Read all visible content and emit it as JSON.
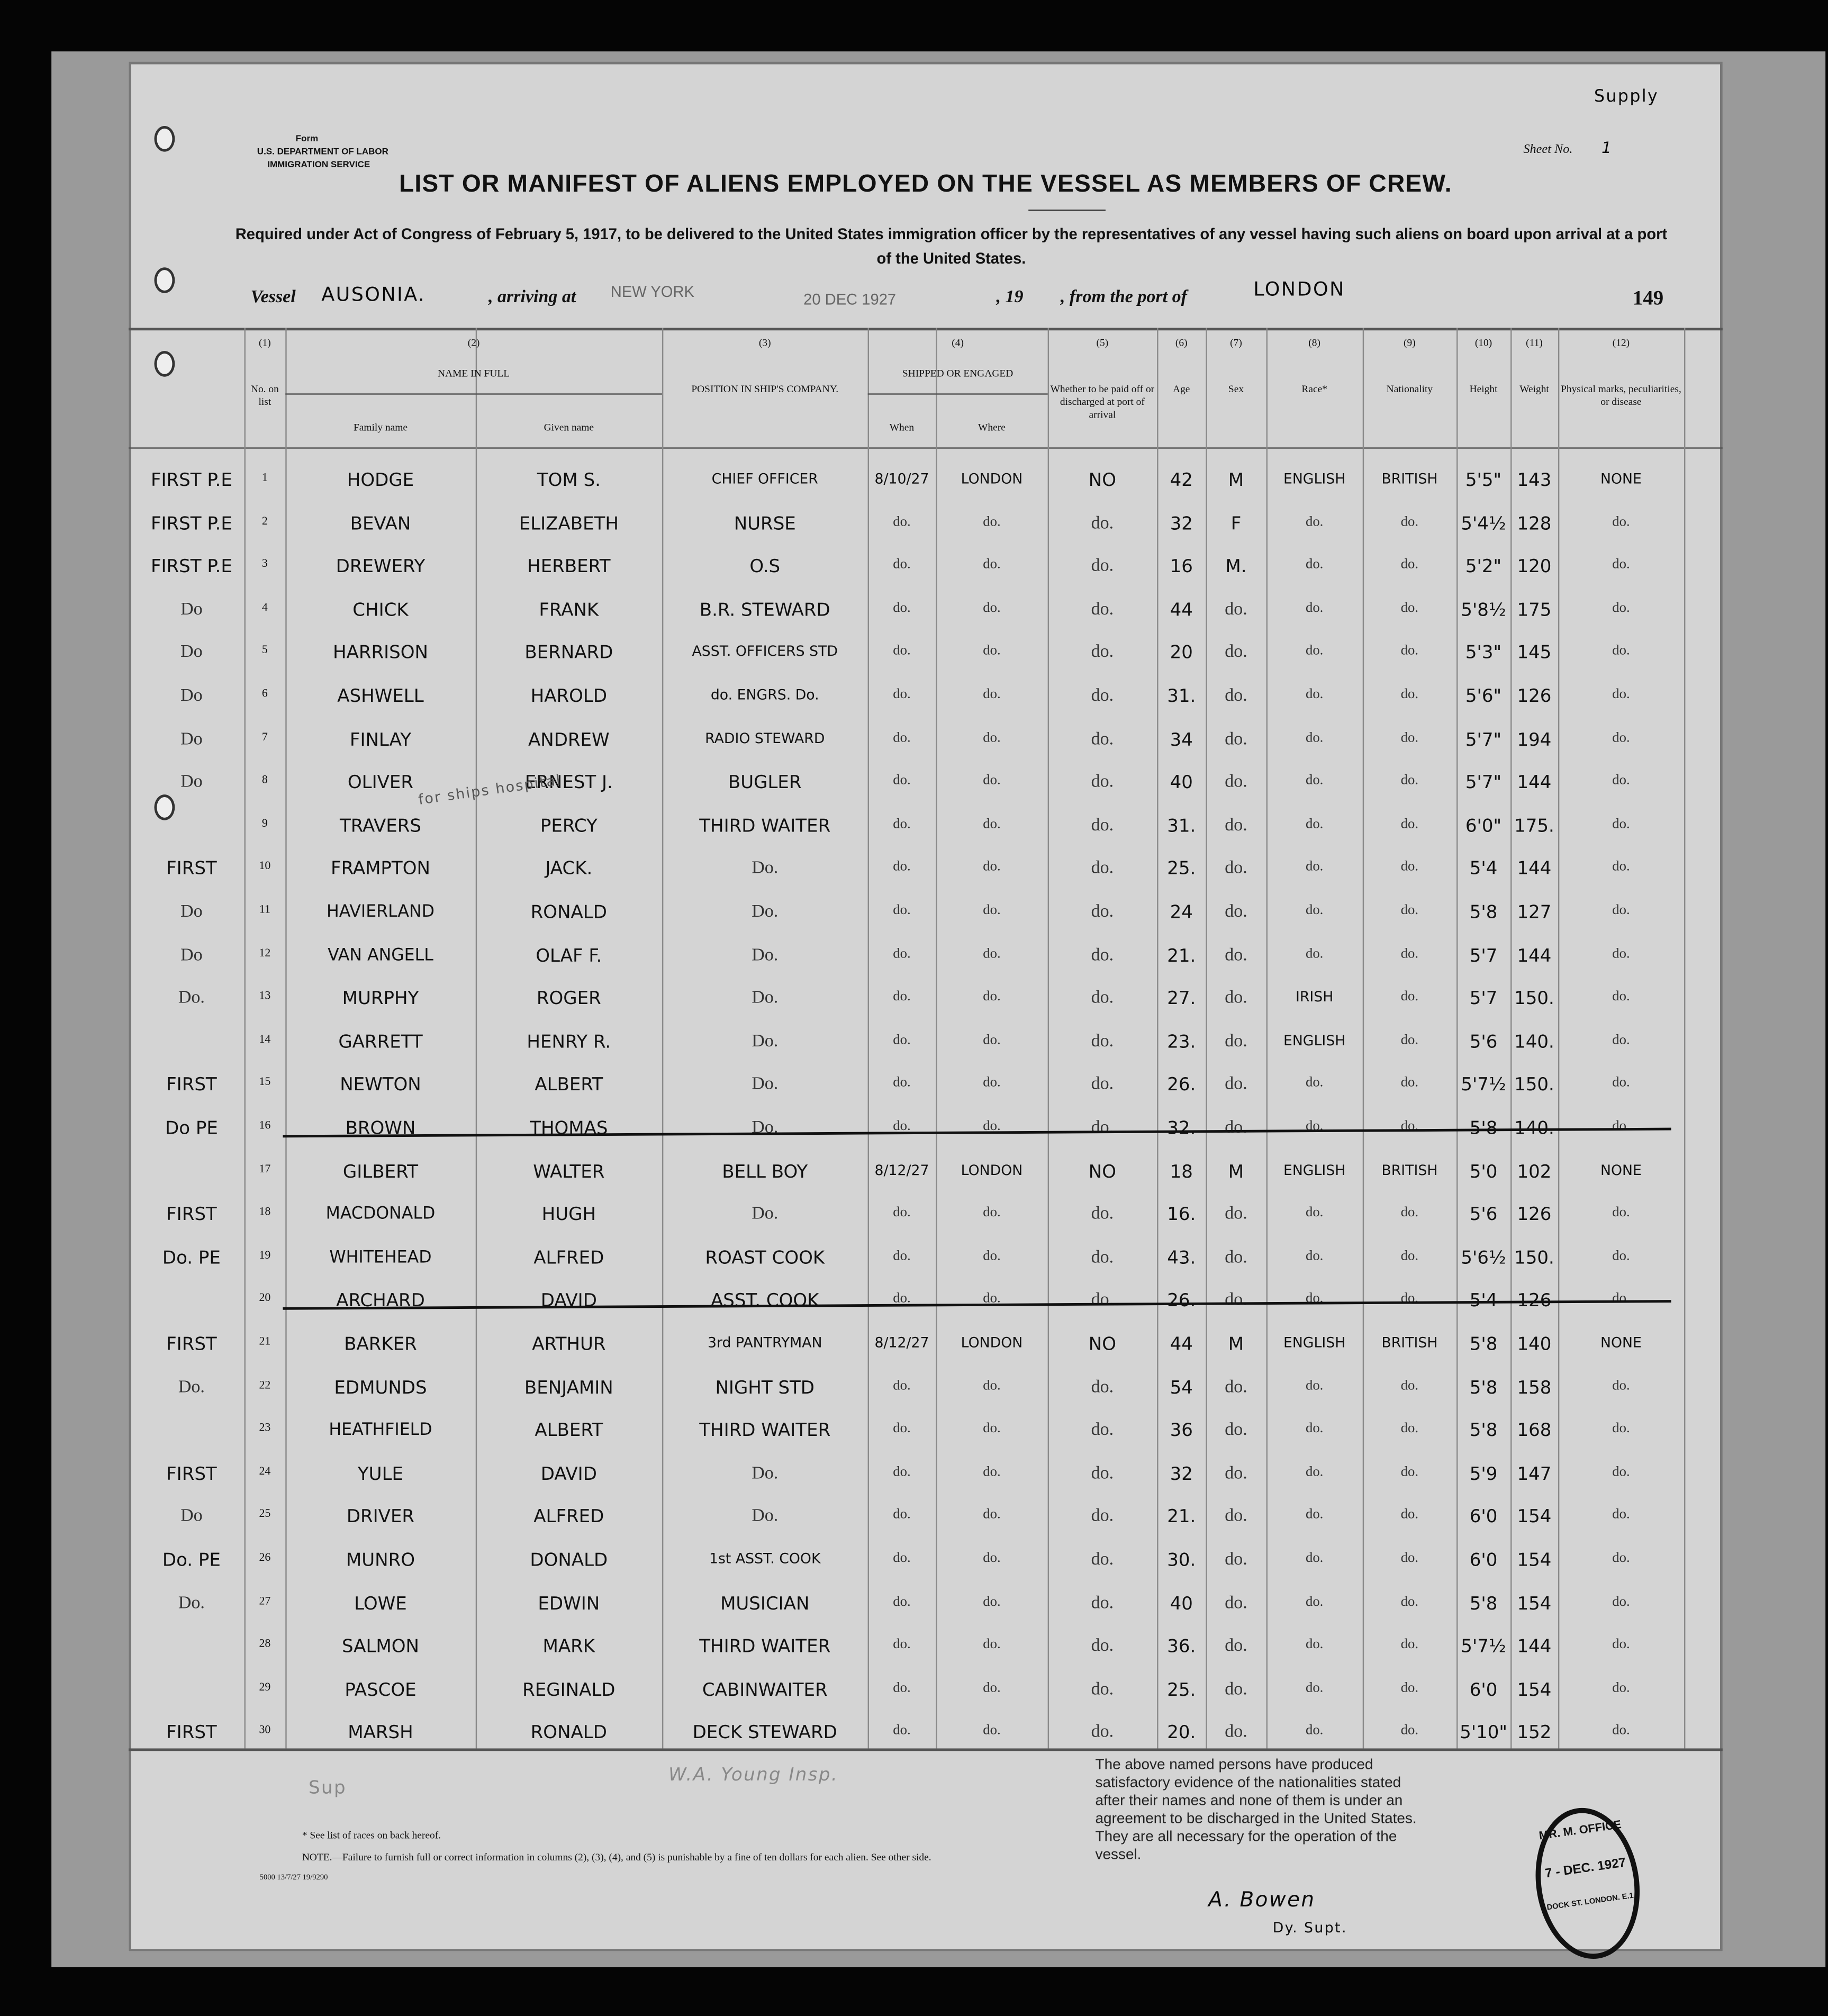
{
  "form": {
    "form_label": "Form",
    "department": "U.S. DEPARTMENT OF LABOR",
    "service": "IMMIGRATION SERVICE",
    "sheet_label": "Sheet No.",
    "sheet_no": "1",
    "corner_note": "Supply"
  },
  "title": "LIST OR MANIFEST OF ALIENS EMPLOYED ON THE VESSEL AS MEMBERS OF CREW.",
  "subtitle": "Required under Act of Congress of February 5, 1917, to be delivered to the United States immigration officer by the representatives of any vessel having such aliens on board upon arrival at a port of the United States.",
  "vessel_line": {
    "vessel_label": "Vessel",
    "vessel": "AUSONIA.",
    "arriving_label": ", arriving at",
    "arriving": "NEW YORK",
    "date": "20 DEC 1927",
    "year_label": ", 19",
    "from_label": ", from the port of",
    "from": "LONDON",
    "number": "149"
  },
  "columns": {
    "c1": {
      "num": "(1)",
      "label": "No. on list"
    },
    "c2": {
      "num": "(2)",
      "label": "NAME IN FULL",
      "family": "Family name",
      "given": "Given name"
    },
    "c3": {
      "num": "(3)",
      "label": "POSITION IN SHIP'S COMPANY."
    },
    "c4": {
      "num": "(4)",
      "label": "SHIPPED OR ENGAGED",
      "when": "When",
      "where": "Where"
    },
    "c5": {
      "num": "(5)",
      "label": "Whether to be paid off or discharged at port of arrival"
    },
    "c6": {
      "num": "(6)",
      "label": "Age"
    },
    "c7": {
      "num": "(7)",
      "label": "Sex"
    },
    "c8": {
      "num": "(8)",
      "label": "Race*"
    },
    "c9": {
      "num": "(9)",
      "label": "Nationality"
    },
    "c10": {
      "num": "(10)",
      "label": "Height"
    },
    "c11": {
      "num": "(11)",
      "label": "Weight"
    },
    "c12": {
      "num": "(12)",
      "label": "Physical marks, peculiarities, or disease"
    }
  },
  "rows": [
    {
      "margin": "FIRST P.E",
      "no": "1",
      "family": "HODGE",
      "given": "TOM S.",
      "position": "CHIEF OFFICER",
      "when": "8/10/27",
      "where": "LONDON",
      "paid": "NO",
      "age": "42",
      "sex": "M",
      "race": "ENGLISH",
      "nationality": "BRITISH",
      "height": "5'5\"",
      "weight": "143",
      "marks": "NONE",
      "struck": false
    },
    {
      "margin": "FIRST P.E",
      "no": "2",
      "family": "BEVAN",
      "given": "ELIZABETH",
      "position": "NURSE",
      "when": "do.",
      "where": "do.",
      "paid": "do.",
      "age": "32",
      "sex": "F",
      "race": "do.",
      "nationality": "do.",
      "height": "5'4½",
      "weight": "128",
      "marks": "do.",
      "struck": false
    },
    {
      "margin": "FIRST P.E",
      "no": "3",
      "family": "DREWERY",
      "given": "HERBERT",
      "position": "O.S",
      "when": "do.",
      "where": "do.",
      "paid": "do.",
      "age": "16",
      "sex": "M.",
      "race": "do.",
      "nationality": "do.",
      "height": "5'2\"",
      "weight": "120",
      "marks": "do.",
      "struck": false
    },
    {
      "margin": "Do",
      "no": "4",
      "family": "CHICK",
      "given": "FRANK",
      "position": "B.R. STEWARD",
      "when": "do.",
      "where": "do.",
      "paid": "do.",
      "age": "44",
      "sex": "do.",
      "race": "do.",
      "nationality": "do.",
      "height": "5'8½",
      "weight": "175",
      "marks": "do.",
      "struck": false
    },
    {
      "margin": "Do",
      "no": "5",
      "family": "HARRISON",
      "given": "BERNARD",
      "position": "ASST. OFFICERS STD",
      "when": "do.",
      "where": "do.",
      "paid": "do.",
      "age": "20",
      "sex": "do.",
      "race": "do.",
      "nationality": "do.",
      "height": "5'3\"",
      "weight": "145",
      "marks": "do.",
      "struck": false
    },
    {
      "margin": "Do",
      "no": "6",
      "family": "ASHWELL",
      "given": "HAROLD",
      "position": "do. ENGRS. Do.",
      "when": "do.",
      "where": "do.",
      "paid": "do.",
      "age": "31.",
      "sex": "do.",
      "race": "do.",
      "nationality": "do.",
      "height": "5'6\"",
      "weight": "126",
      "marks": "do.",
      "struck": false
    },
    {
      "margin": "Do",
      "no": "7",
      "family": "FINLAY",
      "given": "ANDREW",
      "position": "RADIO STEWARD",
      "when": "do.",
      "where": "do.",
      "paid": "do.",
      "age": "34",
      "sex": "do.",
      "race": "do.",
      "nationality": "do.",
      "height": "5'7\"",
      "weight": "194",
      "marks": "do.",
      "struck": false
    },
    {
      "margin": "Do",
      "no": "8",
      "family": "OLIVER",
      "given": "ERNEST J.",
      "position": "BUGLER",
      "when": "do.",
      "where": "do.",
      "paid": "do.",
      "age": "40",
      "sex": "do.",
      "race": "do.",
      "nationality": "do.",
      "height": "5'7\"",
      "weight": "144",
      "marks": "do.",
      "struck": false
    },
    {
      "margin": "",
      "no": "9",
      "family": "TRAVERS",
      "given": "PERCY",
      "position": "THIRD WAITER",
      "when": "do.",
      "where": "do.",
      "paid": "do.",
      "age": "31.",
      "sex": "do.",
      "race": "do.",
      "nationality": "do.",
      "height": "6'0\"",
      "weight": "175.",
      "marks": "do.",
      "struck": false
    },
    {
      "margin": "FIRST",
      "no": "10",
      "family": "FRAMPTON",
      "given": "JACK.",
      "position": "Do.",
      "when": "do.",
      "where": "do.",
      "paid": "do.",
      "age": "25.",
      "sex": "do.",
      "race": "do.",
      "nationality": "do.",
      "height": "5'4",
      "weight": "144",
      "marks": "do.",
      "struck": false
    },
    {
      "margin": "Do",
      "no": "11",
      "family": "HAVIERLAND",
      "given": "RONALD",
      "position": "Do.",
      "when": "do.",
      "where": "do.",
      "paid": "do.",
      "age": "24",
      "sex": "do.",
      "race": "do.",
      "nationality": "do.",
      "height": "5'8",
      "weight": "127",
      "marks": "do.",
      "struck": false
    },
    {
      "margin": "Do",
      "no": "12",
      "family": "VAN ANGELL",
      "given": "OLAF F.",
      "position": "Do.",
      "when": "do.",
      "where": "do.",
      "paid": "do.",
      "age": "21.",
      "sex": "do.",
      "race": "do.",
      "nationality": "do.",
      "height": "5'7",
      "weight": "144",
      "marks": "do.",
      "struck": false
    },
    {
      "margin": "Do.",
      "no": "13",
      "family": "MURPHY",
      "given": "ROGER",
      "position": "Do.",
      "when": "do.",
      "where": "do.",
      "paid": "do.",
      "age": "27.",
      "sex": "do.",
      "race": "IRISH",
      "nationality": "do.",
      "height": "5'7",
      "weight": "150.",
      "marks": "do.",
      "struck": false
    },
    {
      "margin": "",
      "no": "14",
      "family": "GARRETT",
      "given": "HENRY R.",
      "position": "Do.",
      "when": "do.",
      "where": "do.",
      "paid": "do.",
      "age": "23.",
      "sex": "do.",
      "race": "ENGLISH",
      "nationality": "do.",
      "height": "5'6",
      "weight": "140.",
      "marks": "do.",
      "struck": false
    },
    {
      "margin": "FIRST",
      "no": "15",
      "family": "NEWTON",
      "given": "ALBERT",
      "position": "Do.",
      "when": "do.",
      "where": "do.",
      "paid": "do.",
      "age": "26.",
      "sex": "do.",
      "race": "do.",
      "nationality": "do.",
      "height": "5'7½",
      "weight": "150.",
      "marks": "do.",
      "struck": false
    },
    {
      "margin": "Do PE",
      "no": "16",
      "family": "BROWN",
      "given": "THOMAS",
      "position": "Do.",
      "when": "do.",
      "where": "do.",
      "paid": "do.",
      "age": "32.",
      "sex": "do.",
      "race": "do.",
      "nationality": "do.",
      "height": "5'8",
      "weight": "140.",
      "marks": "do.",
      "struck": true
    },
    {
      "margin": "",
      "no": "17",
      "family": "GILBERT",
      "given": "WALTER",
      "position": "BELL BOY",
      "when": "8/12/27",
      "where": "LONDON",
      "paid": "NO",
      "age": "18",
      "sex": "M",
      "race": "ENGLISH",
      "nationality": "BRITISH",
      "height": "5'0",
      "weight": "102",
      "marks": "NONE",
      "struck": false
    },
    {
      "margin": "FIRST",
      "no": "18",
      "family": "MACDONALD",
      "given": "HUGH",
      "position": "Do.",
      "when": "do.",
      "where": "do.",
      "paid": "do.",
      "age": "16.",
      "sex": "do.",
      "race": "do.",
      "nationality": "do.",
      "height": "5'6",
      "weight": "126",
      "marks": "do.",
      "struck": false
    },
    {
      "margin": "Do. PE",
      "no": "19",
      "family": "WHITEHEAD",
      "given": "ALFRED",
      "position": "ROAST COOK",
      "when": "do.",
      "where": "do.",
      "paid": "do.",
      "age": "43.",
      "sex": "do.",
      "race": "do.",
      "nationality": "do.",
      "height": "5'6½",
      "weight": "150.",
      "marks": "do.",
      "struck": false
    },
    {
      "margin": "",
      "no": "20",
      "family": "ARCHARD",
      "given": "DAVID",
      "position": "ASST. COOK",
      "when": "do.",
      "where": "do.",
      "paid": "do.",
      "age": "26.",
      "sex": "do.",
      "race": "do.",
      "nationality": "do.",
      "height": "5'4",
      "weight": "126",
      "marks": "do.",
      "struck": true
    },
    {
      "margin": "FIRST",
      "no": "21",
      "family": "BARKER",
      "given": "ARTHUR",
      "position": "3rd PANTRYMAN",
      "when": "8/12/27",
      "where": "LONDON",
      "paid": "NO",
      "age": "44",
      "sex": "M",
      "race": "ENGLISH",
      "nationality": "BRITISH",
      "height": "5'8",
      "weight": "140",
      "marks": "NONE",
      "struck": false
    },
    {
      "margin": "Do.",
      "no": "22",
      "family": "EDMUNDS",
      "given": "BENJAMIN",
      "position": "NIGHT STD",
      "when": "do.",
      "where": "do.",
      "paid": "do.",
      "age": "54",
      "sex": "do.",
      "race": "do.",
      "nationality": "do.",
      "height": "5'8",
      "weight": "158",
      "marks": "do.",
      "struck": false
    },
    {
      "margin": "",
      "no": "23",
      "family": "HEATHFIELD",
      "given": "ALBERT",
      "position": "THIRD WAITER",
      "when": "do.",
      "where": "do.",
      "paid": "do.",
      "age": "36",
      "sex": "do.",
      "race": "do.",
      "nationality": "do.",
      "height": "5'8",
      "weight": "168",
      "marks": "do.",
      "struck": false
    },
    {
      "margin": "FIRST",
      "no": "24",
      "family": "YULE",
      "given": "DAVID",
      "position": "Do.",
      "when": "do.",
      "where": "do.",
      "paid": "do.",
      "age": "32",
      "sex": "do.",
      "race": "do.",
      "nationality": "do.",
      "height": "5'9",
      "weight": "147",
      "marks": "do.",
      "struck": false
    },
    {
      "margin": "Do",
      "no": "25",
      "family": "DRIVER",
      "given": "ALFRED",
      "position": "Do.",
      "when": "do.",
      "where": "do.",
      "paid": "do.",
      "age": "21.",
      "sex": "do.",
      "race": "do.",
      "nationality": "do.",
      "height": "6'0",
      "weight": "154",
      "marks": "do.",
      "struck": false
    },
    {
      "margin": "Do. PE",
      "no": "26",
      "family": "MUNRO",
      "given": "DONALD",
      "position": "1st ASST. COOK",
      "when": "do.",
      "where": "do.",
      "paid": "do.",
      "age": "30.",
      "sex": "do.",
      "race": "do.",
      "nationality": "do.",
      "height": "6'0",
      "weight": "154",
      "marks": "do.",
      "struck": false
    },
    {
      "margin": "Do.",
      "no": "27",
      "family": "LOWE",
      "given": "EDWIN",
      "position": "MUSICIAN",
      "when": "do.",
      "where": "do.",
      "paid": "do.",
      "age": "40",
      "sex": "do.",
      "race": "do.",
      "nationality": "do.",
      "height": "5'8",
      "weight": "154",
      "marks": "do.",
      "struck": false
    },
    {
      "margin": "",
      "no": "28",
      "family": "SALMON",
      "given": "MARK",
      "position": "THIRD WAITER",
      "when": "do.",
      "where": "do.",
      "paid": "do.",
      "age": "36.",
      "sex": "do.",
      "race": "do.",
      "nationality": "do.",
      "height": "5'7½",
      "weight": "144",
      "marks": "do.",
      "struck": false
    },
    {
      "margin": "",
      "no": "29",
      "family": "PASCOE",
      "given": "REGINALD",
      "position": "CABINWAITER",
      "when": "do.",
      "where": "do.",
      "paid": "do.",
      "age": "25.",
      "sex": "do.",
      "race": "do.",
      "nationality": "do.",
      "height": "6'0",
      "weight": "154",
      "marks": "do.",
      "struck": false
    },
    {
      "margin": "FIRST",
      "no": "30",
      "family": "MARSH",
      "given": "RONALD",
      "position": "DECK STEWARD",
      "when": "do.",
      "where": "do.",
      "paid": "do.",
      "age": "20.",
      "sex": "do.",
      "race": "do.",
      "nationality": "do.",
      "height": "5'10\"",
      "weight": "152",
      "marks": "do.",
      "struck": false
    }
  ],
  "annotations": {
    "ships_hospital": "for ships hospital",
    "margin_sup": "Sup",
    "inspector": "W.A. Young Insp."
  },
  "footer": {
    "races_note": "* See list of races on back hereof.",
    "note": "NOTE.—Failure to furnish full or correct information in columns (2), (3), (4), and (5) is punishable by a fine of ten dollars for each alien.  See other side.",
    "print_code": "5000 13/7/27 19/9290",
    "certification": "The above named persons have produced satisfactory evidence of the nationalities stated after their names and none of them is under an agreement to be discharged in the United States.  They are all necessary for the operation of the vessel.",
    "signature": "A. Bowen",
    "signature_title": "Dy. Supt.",
    "stamp": {
      "top": "MR. M. OFFICE",
      "date": "7 - DEC. 1927",
      "bottom": "DOCK ST. LONDON. E.1"
    }
  }
}
